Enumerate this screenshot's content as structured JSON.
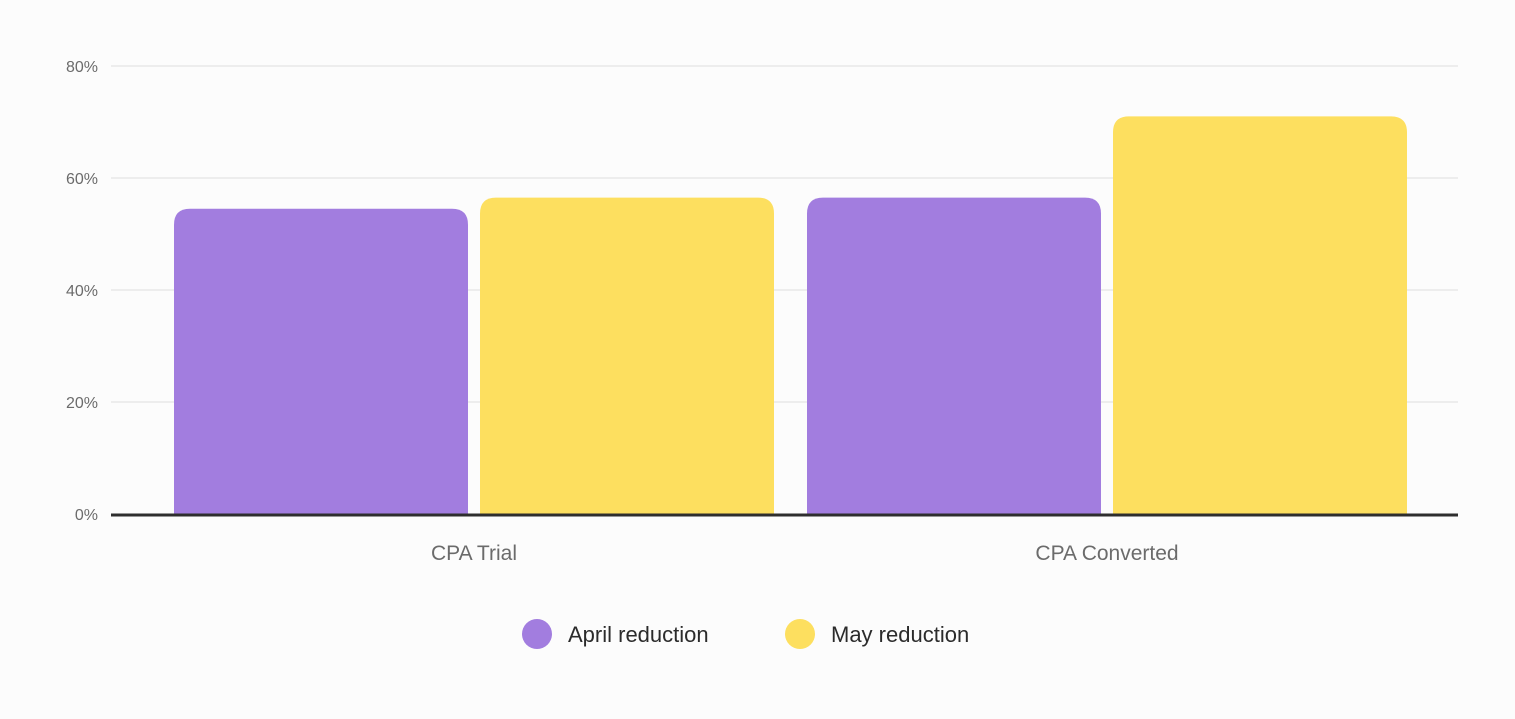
{
  "chart_data": {
    "type": "bar",
    "categories": [
      "CPA Trial",
      "CPA Converted"
    ],
    "series": [
      {
        "name": "April reduction",
        "values": [
          54.5,
          56.5
        ],
        "color": "#a27ddf"
      },
      {
        "name": "May reduction",
        "values": [
          56.5,
          71
        ],
        "color": "#fddf5f"
      }
    ],
    "ylim": [
      0,
      80
    ],
    "yticks": [
      0,
      20,
      40,
      60,
      80
    ],
    "ytick_labels": [
      "0%",
      "20%",
      "40%",
      "60%",
      "80%"
    ],
    "title": "",
    "xlabel": "",
    "ylabel": "",
    "grid": true,
    "legend_position": "bottom-center"
  }
}
